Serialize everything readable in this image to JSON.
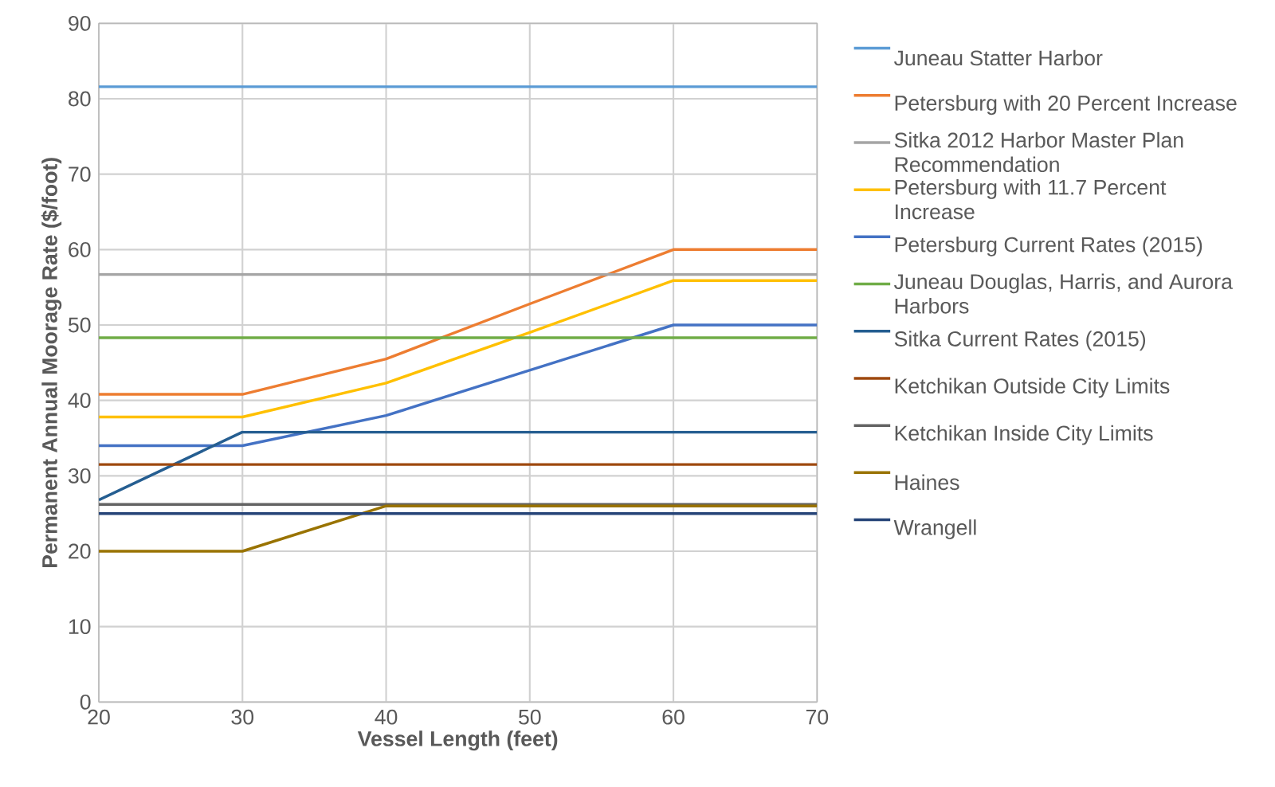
{
  "chart_data": {
    "type": "line",
    "xlabel": "Vessel Length (feet)",
    "ylabel": "Permanent Annual Moorage Rate ($/foot)",
    "x": [
      20,
      30,
      40,
      50,
      60,
      70
    ],
    "xlim": [
      20,
      70
    ],
    "xticks": [
      20,
      30,
      40,
      50,
      60,
      70
    ],
    "ylim": [
      0,
      90
    ],
    "yticks": [
      0,
      10,
      20,
      30,
      40,
      50,
      60,
      70,
      80,
      90
    ],
    "grid": true,
    "legend": "right",
    "marker": "none",
    "line_style": "solid",
    "series": [
      {
        "name": "Juneau Statter Harbor",
        "color": "#5b9bd5",
        "values": [
          81.6,
          81.6,
          81.6,
          81.6,
          81.6,
          81.6
        ]
      },
      {
        "name": "Petersburg with 20 Percent Increase",
        "color": "#ed7d31",
        "values": [
          40.8,
          40.8,
          45.5,
          52.8,
          60,
          60
        ]
      },
      {
        "name": "Sitka 2012 Harbor Master Plan Recommendation",
        "color": "#a5a5a5",
        "values": [
          56.7,
          56.7,
          56.7,
          56.7,
          56.7,
          56.7
        ]
      },
      {
        "name": "Petersburg with 11.7 Percent Increase",
        "color": "#ffc000",
        "values": [
          37.8,
          37.8,
          42.3,
          49,
          55.9,
          55.9
        ]
      },
      {
        "name": "Petersburg Current Rates (2015)",
        "color": "#4472c4",
        "values": [
          34,
          34,
          38,
          44,
          50,
          50
        ]
      },
      {
        "name": "Juneau Douglas, Harris, and Aurora Harbors",
        "color": "#70ad47",
        "values": [
          48.3,
          48.3,
          48.3,
          48.3,
          48.3,
          48.3
        ]
      },
      {
        "name": "Sitka Current Rates (2015)",
        "color": "#255e91",
        "values": [
          26.8,
          35.8,
          35.8,
          35.8,
          35.8,
          35.8
        ]
      },
      {
        "name": "Ketchikan Outside City Limits",
        "color": "#9e480e",
        "values": [
          31.5,
          31.5,
          31.5,
          31.5,
          31.5,
          31.5
        ]
      },
      {
        "name": "Ketchikan Inside City Limits",
        "color": "#636363",
        "values": [
          26.2,
          26.2,
          26.2,
          26.2,
          26.2,
          26.2
        ]
      },
      {
        "name": "Haines",
        "color": "#997300",
        "values": [
          20,
          20,
          26,
          26,
          26,
          26
        ]
      },
      {
        "name": "Wrangell",
        "color": "#264478",
        "values": [
          25,
          25,
          25,
          25,
          25,
          25
        ]
      }
    ]
  }
}
